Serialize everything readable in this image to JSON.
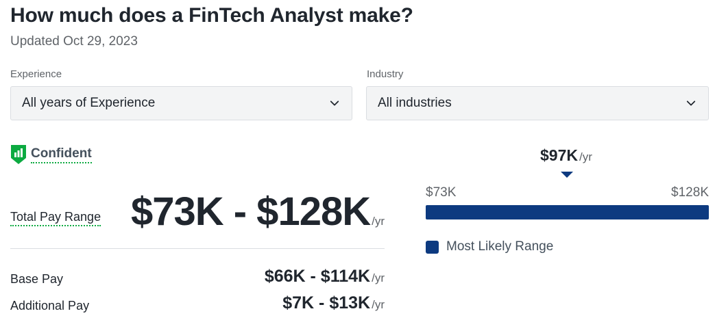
{
  "header": {
    "title": "How much does a FinTech Analyst make?",
    "updated": "Updated Oct 29, 2023"
  },
  "filters": {
    "experience": {
      "label": "Experience",
      "value": "All years of Experience"
    },
    "industry": {
      "label": "Industry",
      "value": "All industries"
    }
  },
  "confidence": {
    "label": "Confident",
    "icon": "confidence-shield-icon",
    "color": "#0caa41"
  },
  "pay": {
    "total": {
      "label": "Total Pay Range",
      "range": "$73K - $128K",
      "unit": "/yr"
    },
    "base": {
      "label": "Base Pay",
      "range": "$66K - $114K",
      "unit": "/yr"
    },
    "additional": {
      "label": "Additional Pay",
      "range": "$7K - $13K",
      "unit": "/yr"
    }
  },
  "range_chart": {
    "median": "$97K",
    "median_unit": "/yr",
    "min": "$73K",
    "max": "$128K",
    "legend": "Most Likely Range",
    "bar_color": "#0d3a80"
  }
}
